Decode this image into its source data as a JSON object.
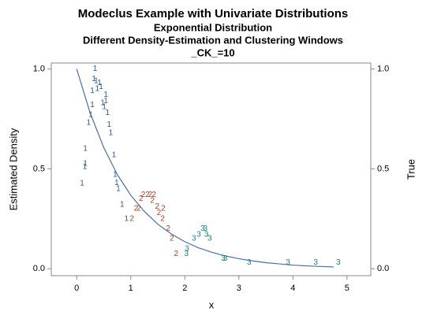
{
  "chart_data": {
    "type": "scatter",
    "title": "Modeclus Example with Univariate Distributions",
    "subtitles": [
      "Exponential Distribution",
      "Different Density-Estimation and Clustering Windows",
      "_CK_=10"
    ],
    "x_label": "x",
    "y_label": "Estimated Density",
    "y2_label": "True",
    "xlim": [
      -0.47,
      5.44
    ],
    "ylim": [
      -0.035,
      1.03
    ],
    "y2lim": [
      -0.035,
      1.03
    ],
    "xticks": [
      0,
      1,
      2,
      3,
      4,
      5
    ],
    "yticks": [
      {
        "value": 0,
        "label": "0.0"
      },
      0.5,
      {
        "value": 1,
        "label": "1.0"
      }
    ],
    "y2ticks": [
      {
        "value": 0,
        "label": "0.0"
      },
      0.5,
      {
        "value": 1,
        "label": "1.0"
      }
    ],
    "series": [
      {
        "name": "1",
        "color": "#2f5b8f",
        "x": [
          0.1,
          0.15,
          0.16,
          0.16,
          0.22,
          0.26,
          0.29,
          0.29,
          0.32,
          0.34,
          0.36,
          0.38,
          0.42,
          0.45,
          0.48,
          0.51,
          0.54,
          0.54,
          0.57,
          0.6,
          0.63,
          0.69,
          0.71,
          0.74,
          0.77,
          0.84,
          0.92
        ],
        "values": [
          0.427,
          0.51,
          0.525,
          0.6,
          0.73,
          0.77,
          0.82,
          0.89,
          0.95,
          1.0,
          0.94,
          0.9,
          0.93,
          0.91,
          0.83,
          0.81,
          0.87,
          0.84,
          0.78,
          0.72,
          0.68,
          0.57,
          0.47,
          0.43,
          0.4,
          0.32,
          0.25
        ]
      },
      {
        "name": "2",
        "color": "#a4402c",
        "x": [
          1.02,
          1.1,
          1.15,
          1.19,
          1.23,
          1.31,
          1.36,
          1.43,
          1.4,
          1.49,
          1.52,
          1.59,
          1.6,
          1.69,
          1.76,
          1.84
        ],
        "values": [
          0.25,
          0.3,
          0.3,
          0.35,
          0.37,
          0.37,
          0.37,
          0.37,
          0.34,
          0.31,
          0.28,
          0.25,
          0.3,
          0.2,
          0.15,
          0.075
        ]
      },
      {
        "name": "3",
        "color": "#1f7f80",
        "x": [
          2.03,
          2.04,
          2.17,
          2.26,
          2.33,
          2.38,
          2.4,
          2.46,
          2.71,
          2.75,
          3.19,
          3.91,
          4.42,
          4.84
        ],
        "values": [
          0.075,
          0.1,
          0.15,
          0.17,
          0.2,
          0.2,
          0.17,
          0.15,
          0.05,
          0.05,
          0.03,
          0.03,
          0.03,
          0.03
        ]
      }
    ],
    "curve": {
      "color": "#4a6fa0",
      "x": [
        0,
        0.25,
        0.5,
        0.75,
        1,
        1.25,
        1.5,
        1.75,
        2,
        2.25,
        2.5,
        2.75,
        3,
        3.25,
        3.5,
        3.75,
        4,
        4.25,
        4.5,
        4.75
      ],
      "values": [
        1,
        0.779,
        0.607,
        0.472,
        0.368,
        0.287,
        0.223,
        0.174,
        0.135,
        0.105,
        0.082,
        0.064,
        0.05,
        0.039,
        0.03,
        0.024,
        0.018,
        0.014,
        0.011,
        0.009
      ]
    }
  }
}
